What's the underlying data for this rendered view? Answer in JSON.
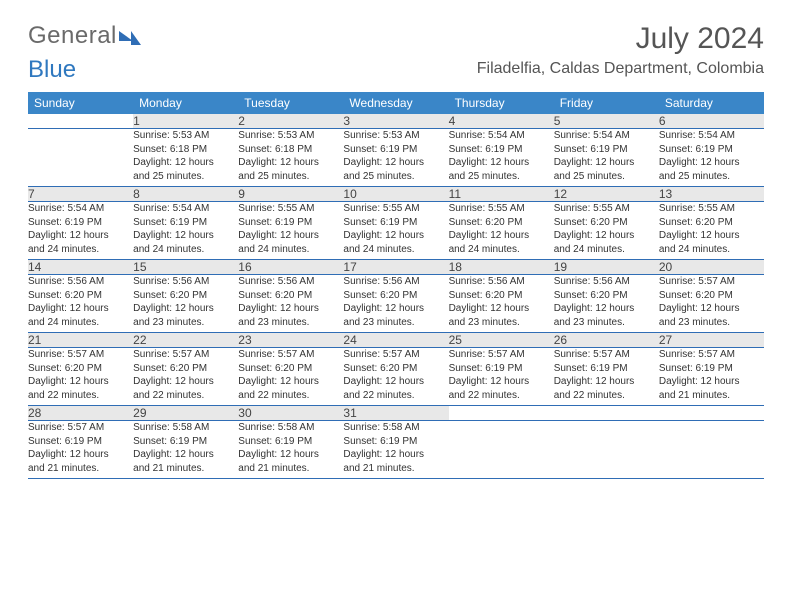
{
  "brand": {
    "part1": "General",
    "part2": "Blue"
  },
  "title": "July 2024",
  "location": "Filadelfia, Caldas Department, Colombia",
  "weekdays": [
    "Sunday",
    "Monday",
    "Tuesday",
    "Wednesday",
    "Thursday",
    "Friday",
    "Saturday"
  ],
  "colors": {
    "header_bg": "#3a86c8",
    "header_text": "#ffffff",
    "daynum_bg": "#e8e8e8",
    "rule": "#2f6db5",
    "text": "#333333",
    "title_text": "#555555"
  },
  "typography": {
    "title_fontsize": 30,
    "location_fontsize": 16,
    "header_fontsize": 12,
    "body_fontsize": 10
  },
  "layout": {
    "columns": 7,
    "rows": 5
  },
  "weeks": [
    [
      {
        "day": "",
        "lines": []
      },
      {
        "day": "1",
        "lines": [
          "Sunrise: 5:53 AM",
          "Sunset: 6:18 PM",
          "Daylight: 12 hours",
          "and 25 minutes."
        ]
      },
      {
        "day": "2",
        "lines": [
          "Sunrise: 5:53 AM",
          "Sunset: 6:18 PM",
          "Daylight: 12 hours",
          "and 25 minutes."
        ]
      },
      {
        "day": "3",
        "lines": [
          "Sunrise: 5:53 AM",
          "Sunset: 6:19 PM",
          "Daylight: 12 hours",
          "and 25 minutes."
        ]
      },
      {
        "day": "4",
        "lines": [
          "Sunrise: 5:54 AM",
          "Sunset: 6:19 PM",
          "Daylight: 12 hours",
          "and 25 minutes."
        ]
      },
      {
        "day": "5",
        "lines": [
          "Sunrise: 5:54 AM",
          "Sunset: 6:19 PM",
          "Daylight: 12 hours",
          "and 25 minutes."
        ]
      },
      {
        "day": "6",
        "lines": [
          "Sunrise: 5:54 AM",
          "Sunset: 6:19 PM",
          "Daylight: 12 hours",
          "and 25 minutes."
        ]
      }
    ],
    [
      {
        "day": "7",
        "lines": [
          "Sunrise: 5:54 AM",
          "Sunset: 6:19 PM",
          "Daylight: 12 hours",
          "and 24 minutes."
        ]
      },
      {
        "day": "8",
        "lines": [
          "Sunrise: 5:54 AM",
          "Sunset: 6:19 PM",
          "Daylight: 12 hours",
          "and 24 minutes."
        ]
      },
      {
        "day": "9",
        "lines": [
          "Sunrise: 5:55 AM",
          "Sunset: 6:19 PM",
          "Daylight: 12 hours",
          "and 24 minutes."
        ]
      },
      {
        "day": "10",
        "lines": [
          "Sunrise: 5:55 AM",
          "Sunset: 6:19 PM",
          "Daylight: 12 hours",
          "and 24 minutes."
        ]
      },
      {
        "day": "11",
        "lines": [
          "Sunrise: 5:55 AM",
          "Sunset: 6:20 PM",
          "Daylight: 12 hours",
          "and 24 minutes."
        ]
      },
      {
        "day": "12",
        "lines": [
          "Sunrise: 5:55 AM",
          "Sunset: 6:20 PM",
          "Daylight: 12 hours",
          "and 24 minutes."
        ]
      },
      {
        "day": "13",
        "lines": [
          "Sunrise: 5:55 AM",
          "Sunset: 6:20 PM",
          "Daylight: 12 hours",
          "and 24 minutes."
        ]
      }
    ],
    [
      {
        "day": "14",
        "lines": [
          "Sunrise: 5:56 AM",
          "Sunset: 6:20 PM",
          "Daylight: 12 hours",
          "and 24 minutes."
        ]
      },
      {
        "day": "15",
        "lines": [
          "Sunrise: 5:56 AM",
          "Sunset: 6:20 PM",
          "Daylight: 12 hours",
          "and 23 minutes."
        ]
      },
      {
        "day": "16",
        "lines": [
          "Sunrise: 5:56 AM",
          "Sunset: 6:20 PM",
          "Daylight: 12 hours",
          "and 23 minutes."
        ]
      },
      {
        "day": "17",
        "lines": [
          "Sunrise: 5:56 AM",
          "Sunset: 6:20 PM",
          "Daylight: 12 hours",
          "and 23 minutes."
        ]
      },
      {
        "day": "18",
        "lines": [
          "Sunrise: 5:56 AM",
          "Sunset: 6:20 PM",
          "Daylight: 12 hours",
          "and 23 minutes."
        ]
      },
      {
        "day": "19",
        "lines": [
          "Sunrise: 5:56 AM",
          "Sunset: 6:20 PM",
          "Daylight: 12 hours",
          "and 23 minutes."
        ]
      },
      {
        "day": "20",
        "lines": [
          "Sunrise: 5:57 AM",
          "Sunset: 6:20 PM",
          "Daylight: 12 hours",
          "and 23 minutes."
        ]
      }
    ],
    [
      {
        "day": "21",
        "lines": [
          "Sunrise: 5:57 AM",
          "Sunset: 6:20 PM",
          "Daylight: 12 hours",
          "and 22 minutes."
        ]
      },
      {
        "day": "22",
        "lines": [
          "Sunrise: 5:57 AM",
          "Sunset: 6:20 PM",
          "Daylight: 12 hours",
          "and 22 minutes."
        ]
      },
      {
        "day": "23",
        "lines": [
          "Sunrise: 5:57 AM",
          "Sunset: 6:20 PM",
          "Daylight: 12 hours",
          "and 22 minutes."
        ]
      },
      {
        "day": "24",
        "lines": [
          "Sunrise: 5:57 AM",
          "Sunset: 6:20 PM",
          "Daylight: 12 hours",
          "and 22 minutes."
        ]
      },
      {
        "day": "25",
        "lines": [
          "Sunrise: 5:57 AM",
          "Sunset: 6:19 PM",
          "Daylight: 12 hours",
          "and 22 minutes."
        ]
      },
      {
        "day": "26",
        "lines": [
          "Sunrise: 5:57 AM",
          "Sunset: 6:19 PM",
          "Daylight: 12 hours",
          "and 22 minutes."
        ]
      },
      {
        "day": "27",
        "lines": [
          "Sunrise: 5:57 AM",
          "Sunset: 6:19 PM",
          "Daylight: 12 hours",
          "and 21 minutes."
        ]
      }
    ],
    [
      {
        "day": "28",
        "lines": [
          "Sunrise: 5:57 AM",
          "Sunset: 6:19 PM",
          "Daylight: 12 hours",
          "and 21 minutes."
        ]
      },
      {
        "day": "29",
        "lines": [
          "Sunrise: 5:58 AM",
          "Sunset: 6:19 PM",
          "Daylight: 12 hours",
          "and 21 minutes."
        ]
      },
      {
        "day": "30",
        "lines": [
          "Sunrise: 5:58 AM",
          "Sunset: 6:19 PM",
          "Daylight: 12 hours",
          "and 21 minutes."
        ]
      },
      {
        "day": "31",
        "lines": [
          "Sunrise: 5:58 AM",
          "Sunset: 6:19 PM",
          "Daylight: 12 hours",
          "and 21 minutes."
        ]
      },
      {
        "day": "",
        "lines": []
      },
      {
        "day": "",
        "lines": []
      },
      {
        "day": "",
        "lines": []
      }
    ]
  ]
}
